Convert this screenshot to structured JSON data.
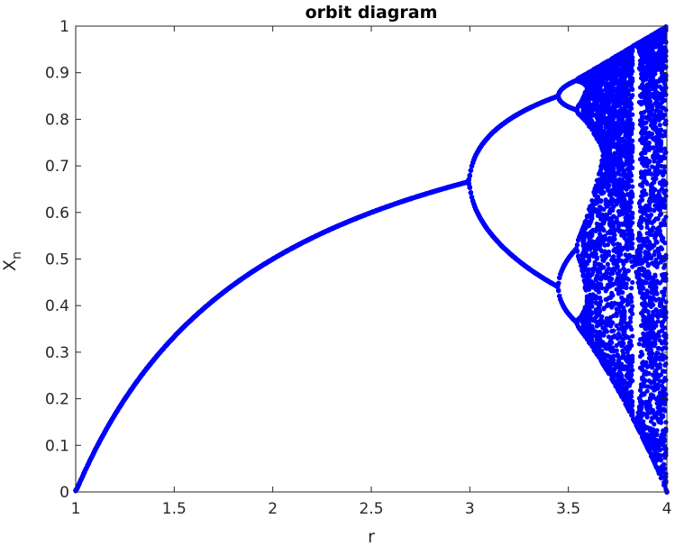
{
  "chart_data": {
    "type": "scatter",
    "title": "orbit diagram",
    "xlabel": "r",
    "ylabel": "X",
    "ylabel_subscript": "n",
    "xlim": [
      1,
      4
    ],
    "ylim": [
      0,
      1
    ],
    "xticks": [
      "1",
      "1.5",
      "2",
      "2.5",
      "3",
      "3.5",
      "4"
    ],
    "yticks": [
      "0",
      "0.1",
      "0.2",
      "0.3",
      "0.4",
      "0.5",
      "0.6",
      "0.7",
      "0.8",
      "0.9",
      "1"
    ],
    "grid": false,
    "series_color": "#0000ff",
    "map": "x_{n+1} = r x_n (1 - x_n)",
    "r_step": 0.005,
    "iterations_discarded": 300,
    "iterations_plotted": 60,
    "x0": 0.5
  }
}
